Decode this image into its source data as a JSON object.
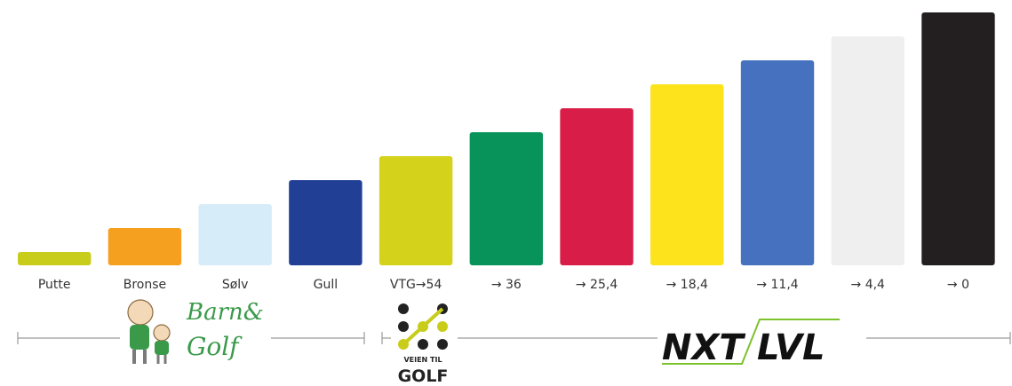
{
  "chart_data": {
    "type": "bar",
    "categories": [
      "Putte",
      "Bronse",
      "Sølv",
      "Gull",
      "VTG→54",
      "→ 36",
      "→ 25,4",
      "→ 18,4",
      "→ 11,4",
      "→ 4,4",
      "→ 0"
    ],
    "values": [
      15,
      42,
      69,
      96,
      123,
      150,
      177,
      204,
      231,
      258,
      285
    ],
    "colors": [
      "#c8cc1a",
      "#f5a01e",
      "#d6ecf8",
      "#213f94",
      "#d4d21a",
      "#07935a",
      "#d81e48",
      "#fce31c",
      "#4571be",
      "#efefef",
      "#231f20"
    ],
    "ylim": [
      0,
      285
    ]
  },
  "logos": {
    "barn_golf": [
      "Barn&",
      "Golf"
    ],
    "veien_til_golf": [
      "VEIEN TIL",
      "GOLF"
    ],
    "nxt_lvl": [
      "NXT",
      "LVL"
    ]
  }
}
